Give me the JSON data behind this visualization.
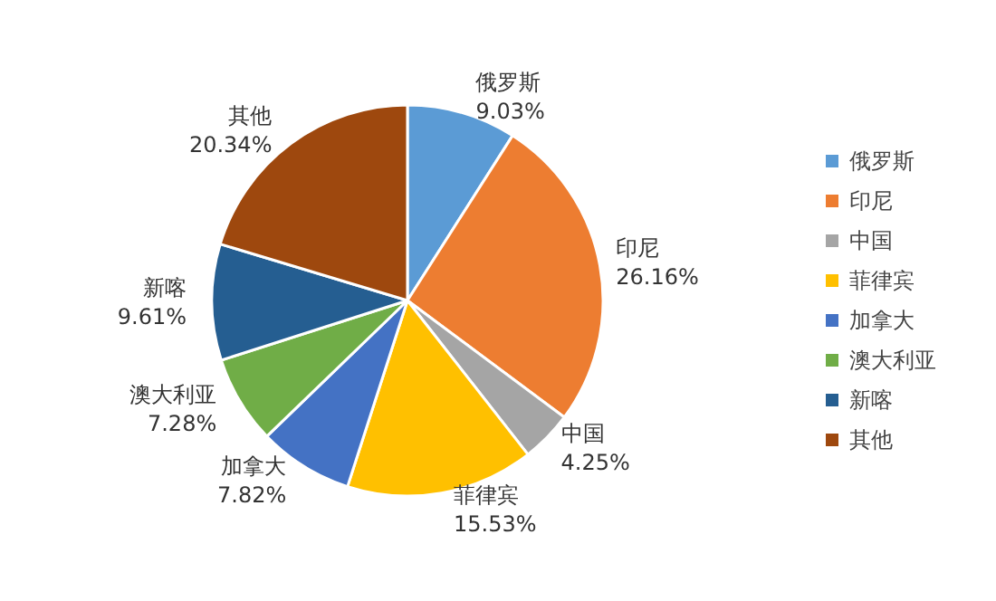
{
  "chart_data": {
    "type": "pie",
    "categories": [
      "俄罗斯",
      "印尼",
      "中国",
      "菲律宾",
      "加拿大",
      "澳大利亚",
      "新喀",
      "其他"
    ],
    "values": [
      9.03,
      26.16,
      4.25,
      15.53,
      7.82,
      7.28,
      9.61,
      20.34
    ],
    "value_labels": [
      "9.03%",
      "26.16%",
      "4.25%",
      "15.53%",
      "7.82%",
      "7.28%",
      "9.61%",
      "20.34%"
    ],
    "colors": [
      "#5b9bd5",
      "#ed7d31",
      "#a5a5a5",
      "#ffc000",
      "#4472c4",
      "#70ad47",
      "#255e91",
      "#9e480e"
    ],
    "legend": "right"
  }
}
